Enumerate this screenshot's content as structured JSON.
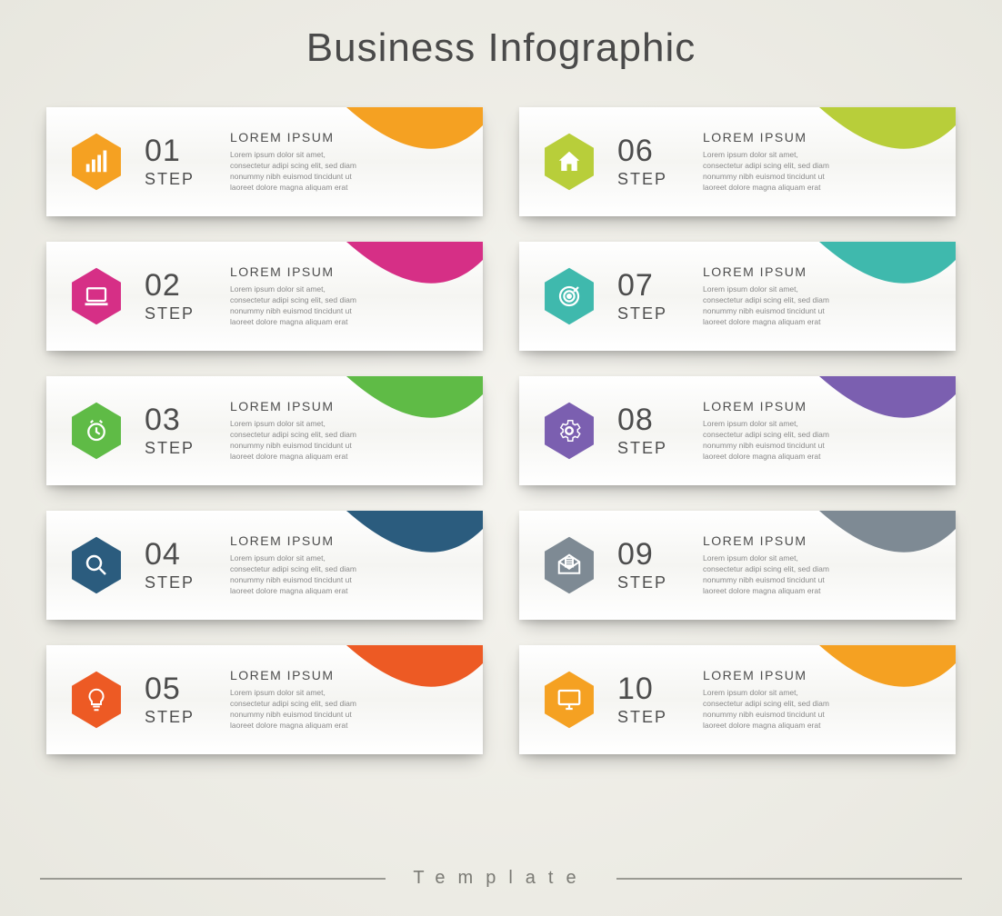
{
  "title": "Business Infographic",
  "footer": "Template",
  "step_label": "STEP",
  "body_text": "Lorem ipsum dolor sit amet, consectetur adipi scing elit, sed diam nonummy nibh euismod tincidunt ut laoreet dolore magna aliquam erat",
  "card_title": "LOREM IPSUM",
  "colors": {
    "title_text": "#4a4a4a",
    "num_text": "#4d4d4d",
    "body_text": "#8a8a8a",
    "background_center": "#f5f4ef",
    "background_edge": "#e8e7df",
    "footer_line": "#9a9a93"
  },
  "steps": [
    {
      "num": "01",
      "color": "#f5a122",
      "icon": "chart"
    },
    {
      "num": "02",
      "color": "#d62f86",
      "icon": "laptop"
    },
    {
      "num": "03",
      "color": "#5fbb46",
      "icon": "clock"
    },
    {
      "num": "04",
      "color": "#2b5c7e",
      "icon": "search"
    },
    {
      "num": "05",
      "color": "#ed5a24",
      "icon": "bulb"
    },
    {
      "num": "06",
      "color": "#b8ce3a",
      "icon": "home"
    },
    {
      "num": "07",
      "color": "#3fb9ad",
      "icon": "target"
    },
    {
      "num": "08",
      "color": "#7b5fb0",
      "icon": "gear"
    },
    {
      "num": "09",
      "color": "#7e8a94",
      "icon": "mail"
    },
    {
      "num": "10",
      "color": "#f5a122",
      "icon": "monitor"
    }
  ]
}
